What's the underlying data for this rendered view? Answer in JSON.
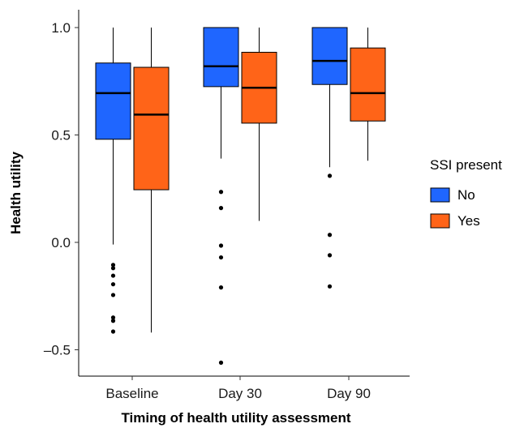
{
  "chart_data": {
    "type": "boxplot",
    "xlabel": "Timing of health utility assessment",
    "ylabel": "Health utility",
    "ylim": [
      -0.62,
      1.08
    ],
    "yticks": [
      {
        "value": 1.0,
        "label": "1.0"
      },
      {
        "value": 0.5,
        "label": "0.5"
      },
      {
        "value": 0.0,
        "label": "0.0"
      },
      {
        "value": -0.5,
        "label": "–0.5"
      }
    ],
    "categories": [
      "Baseline",
      "Day 30",
      "Day 90"
    ],
    "grid": false,
    "legend": {
      "title": "SSI present",
      "position": "right"
    },
    "series": [
      {
        "name": "No",
        "color": "#1f66ff",
        "boxes": [
          {
            "whisker_low": -0.01,
            "q1": 0.48,
            "median": 0.695,
            "q3": 0.835,
            "whisker_high": 1.0,
            "outliers": [
              -0.105,
              -0.12,
              -0.155,
              -0.195,
              -0.245,
              -0.35,
              -0.365,
              -0.415
            ]
          },
          {
            "whisker_low": 0.39,
            "q1": 0.725,
            "median": 0.82,
            "q3": 1.0,
            "whisker_high": 1.0,
            "outliers": [
              0.235,
              0.16,
              -0.015,
              -0.07,
              -0.21,
              -0.56
            ]
          },
          {
            "whisker_low": 0.35,
            "q1": 0.735,
            "median": 0.845,
            "q3": 1.0,
            "whisker_high": 1.0,
            "outliers": [
              0.31,
              0.035,
              -0.06,
              -0.205
            ]
          }
        ]
      },
      {
        "name": "Yes",
        "color": "#ff6418",
        "boxes": [
          {
            "whisker_low": -0.42,
            "q1": 0.245,
            "median": 0.595,
            "q3": 0.815,
            "whisker_high": 1.0,
            "outliers": []
          },
          {
            "whisker_low": 0.1,
            "q1": 0.555,
            "median": 0.72,
            "q3": 0.885,
            "whisker_high": 1.0,
            "outliers": []
          },
          {
            "whisker_low": 0.38,
            "q1": 0.565,
            "median": 0.695,
            "q3": 0.905,
            "whisker_high": 1.0,
            "outliers": []
          }
        ]
      }
    ]
  }
}
